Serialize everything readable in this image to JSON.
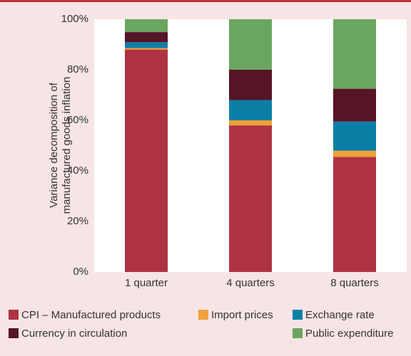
{
  "chart_data": {
    "type": "stacked_bar",
    "ylabel_lines": [
      "Variance decomposition of",
      "manufactured goods inflation"
    ],
    "categories": [
      "1 quarter",
      "4 quarters",
      "8 quarters"
    ],
    "series": [
      {
        "name": "CPI – Manufactured products",
        "color": "#ad3343",
        "values": [
          88,
          58,
          45.5
        ]
      },
      {
        "name": "Import prices",
        "color": "#efa038",
        "values": [
          0.6,
          2,
          2.5
        ]
      },
      {
        "name": "Exchange rate",
        "color": "#0b7ea6",
        "values": [
          2.3,
          8,
          11.5
        ]
      },
      {
        "name": "Currency in circulation",
        "color": "#561427",
        "values": [
          4,
          12,
          13
        ]
      },
      {
        "name": "Public expenditure",
        "color": "#6aa65f",
        "values": [
          5.1,
          20,
          27.5
        ]
      }
    ],
    "ylim": [
      0,
      100
    ],
    "yticks": [
      {
        "value": 0,
        "label": "0%"
      },
      {
        "value": 20,
        "label": "20%"
      },
      {
        "value": 40,
        "label": "40%"
      },
      {
        "value": 60,
        "label": "60%"
      },
      {
        "value": 80,
        "label": "80%"
      },
      {
        "value": 100,
        "label": "100%"
      }
    ]
  }
}
